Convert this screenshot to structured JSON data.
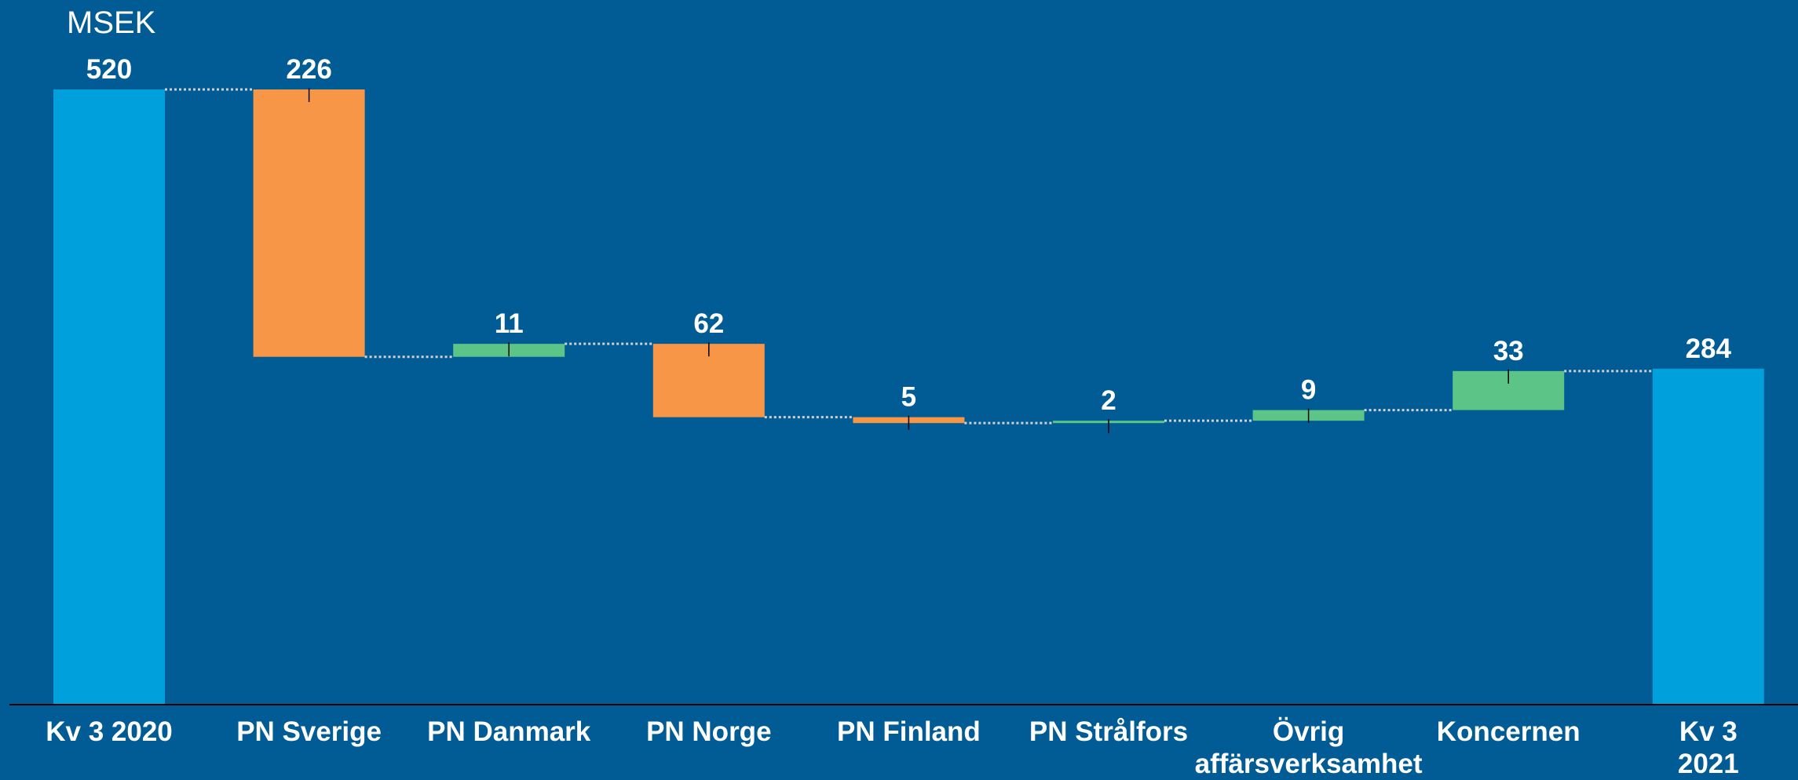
{
  "chart_data": {
    "type": "waterfall",
    "unit_label": "MSEK",
    "categories": [
      "Kv 3 2020",
      "PN Sverige",
      "PN Danmark",
      "PN Norge",
      "PN Finland",
      "PN Strålfors",
      "Övrig affärsverksamhet",
      "Koncernen",
      "Kv 3 2021"
    ],
    "values": [
      520,
      -226,
      11,
      -62,
      -5,
      2,
      9,
      33,
      284
    ],
    "value_labels": [
      "520",
      "226",
      "11",
      "62",
      "5",
      "2",
      "9",
      "33",
      "284"
    ],
    "total_color": "#00a0dc",
    "increase_color": "#5cc486",
    "decrease_color": "#f79646"
  }
}
